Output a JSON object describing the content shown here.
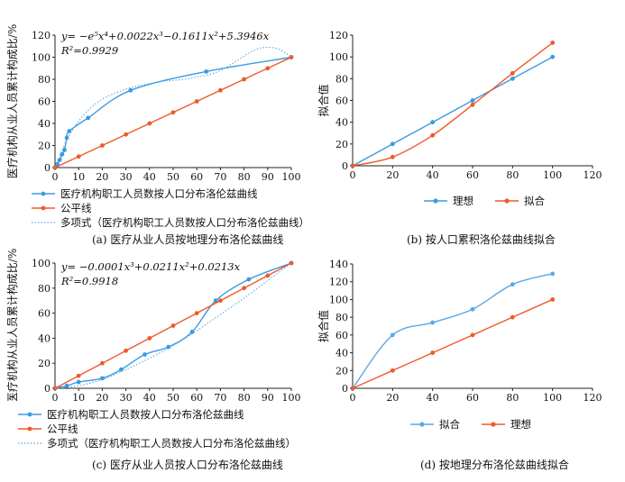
{
  "chart_data": [
    {
      "id": "a",
      "type": "line",
      "caption": "(a) 医疗从业人员按地理分布洛伦兹曲线",
      "ylabel": "医疗机构从业人员累计构成比/%",
      "xlim": [
        0,
        100
      ],
      "ylim": [
        0,
        120
      ],
      "xticks": [
        0,
        10,
        20,
        30,
        40,
        50,
        60,
        70,
        80,
        90,
        100
      ],
      "yticks": [
        0,
        20,
        40,
        60,
        80,
        100,
        120
      ],
      "equation": "y= −e⁵x⁴+0.0022x³−0.1611x²+5.3946x",
      "r2": "R²=0.9929",
      "series": [
        {
          "name": "医疗机构职工人员数按人口分布洛伦兹曲线",
          "color": "#3b9be0",
          "style": "solid",
          "x": [
            0,
            1,
            2,
            3,
            4,
            5,
            6,
            14,
            32,
            64,
            100
          ],
          "y": [
            0,
            3,
            7,
            12,
            16,
            27,
            33,
            45,
            70,
            87,
            100
          ]
        },
        {
          "name": "公平线",
          "color": "#ef5a28",
          "style": "solid",
          "x": [
            0,
            10,
            20,
            30,
            40,
            50,
            60,
            70,
            80,
            90,
            100
          ],
          "y": [
            0,
            10,
            20,
            30,
            40,
            50,
            60,
            70,
            80,
            90,
            100
          ]
        },
        {
          "name": "多项式（医疗机构职工人员数按人口分布洛伦兹曲线）",
          "color": "#5aa8e8",
          "style": "dotted",
          "x": [
            0,
            5,
            10,
            15,
            20,
            25,
            30,
            35,
            40,
            45,
            50,
            55,
            60,
            65,
            70,
            75,
            80,
            85,
            90,
            95,
            100
          ],
          "y": [
            0,
            25,
            42,
            54,
            62,
            67,
            71,
            74,
            76,
            78,
            79,
            80,
            82,
            84,
            88,
            94,
            101,
            107,
            109,
            107,
            100
          ]
        }
      ]
    },
    {
      "id": "b",
      "type": "line",
      "caption": "(b) 按人口累积洛伦兹曲线拟合",
      "ylabel": "拟合值",
      "xlim": [
        0,
        120
      ],
      "ylim": [
        0,
        120
      ],
      "xticks": [
        0,
        20,
        40,
        60,
        80,
        100,
        120
      ],
      "yticks": [
        0,
        20,
        40,
        60,
        80,
        100,
        120
      ],
      "series": [
        {
          "name": "理想",
          "color": "#3b9be0",
          "style": "solid",
          "x": [
            0,
            20,
            40,
            60,
            80,
            100
          ],
          "y": [
            0,
            20,
            40,
            60,
            80,
            100
          ]
        },
        {
          "name": "拟合",
          "color": "#ef5a28",
          "style": "solid",
          "x": [
            0,
            20,
            40,
            60,
            80,
            100
          ],
          "y": [
            0,
            8,
            28,
            56,
            85,
            113
          ]
        }
      ]
    },
    {
      "id": "c",
      "type": "line",
      "caption": "(c) 医疗从业人员按人口分布洛伦兹曲线",
      "ylabel": "医疗机构从业人员累计构成比/%",
      "xlim": [
        0,
        100
      ],
      "ylim": [
        0,
        100
      ],
      "xticks": [
        0,
        10,
        20,
        30,
        40,
        50,
        60,
        70,
        80,
        90,
        100
      ],
      "yticks": [
        0,
        20,
        40,
        60,
        80,
        100
      ],
      "equation": "y= −0.0001x³+0.0211x²+0.0213x",
      "r2": "R²=0.9918",
      "series": [
        {
          "name": "医疗机构职工人员数按人口分布洛伦兹曲线",
          "color": "#3b9be0",
          "style": "solid",
          "x": [
            0,
            5,
            10,
            20,
            28,
            38,
            48,
            58,
            68,
            82,
            100
          ],
          "y": [
            0,
            2,
            5,
            8,
            15,
            27,
            33,
            45,
            70,
            87,
            100
          ]
        },
        {
          "name": "公平线",
          "color": "#ef5a28",
          "style": "solid",
          "x": [
            0,
            10,
            20,
            30,
            40,
            50,
            60,
            70,
            80,
            90,
            100
          ],
          "y": [
            0,
            10,
            20,
            30,
            40,
            50,
            60,
            70,
            80,
            90,
            100
          ]
        },
        {
          "name": "多项式（医疗机构职工人员数按人口分布洛伦兹曲线）",
          "color": "#5aa8e8",
          "style": "dotted",
          "x": [
            0,
            10,
            20,
            30,
            40,
            50,
            60,
            70,
            80,
            90,
            100
          ],
          "y": [
            0,
            2,
            7,
            15,
            24,
            34,
            46,
            59,
            72,
            86,
            100
          ]
        }
      ]
    },
    {
      "id": "d",
      "type": "line",
      "caption": "(d) 按地理分布洛伦兹曲线拟合",
      "ylabel": "拟合值",
      "xlim": [
        0,
        120
      ],
      "ylim": [
        0,
        140
      ],
      "xticks": [
        0,
        20,
        40,
        60,
        80,
        100,
        120
      ],
      "yticks": [
        0,
        20,
        40,
        60,
        80,
        100,
        120,
        140
      ],
      "series": [
        {
          "name": "拟合",
          "color": "#5aa8e8",
          "style": "solid",
          "x": [
            0,
            20,
            40,
            60,
            80,
            100
          ],
          "y": [
            0,
            60,
            74,
            89,
            117,
            129
          ]
        },
        {
          "name": "理想",
          "color": "#ef5a28",
          "style": "solid",
          "x": [
            0,
            20,
            40,
            60,
            80,
            100
          ],
          "y": [
            0,
            20,
            40,
            60,
            80,
            100
          ]
        }
      ]
    }
  ]
}
